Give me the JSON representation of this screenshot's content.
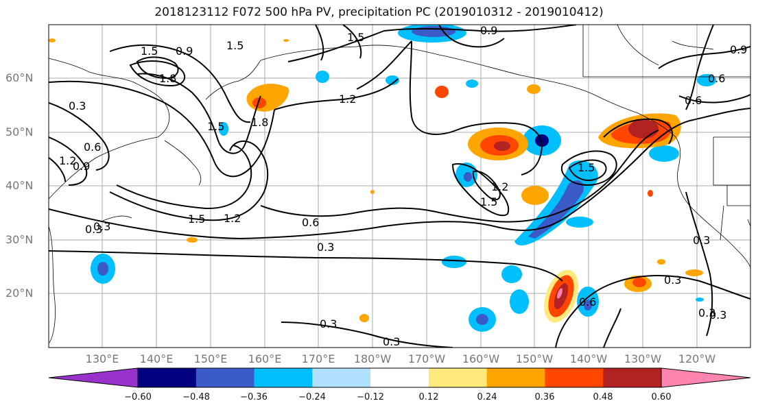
{
  "title": "2018123112 F072 500 hPa PV, precipitation PC (2019010312 - 2019010412)",
  "lat_labels": [
    "60°N",
    "50°N",
    "40°N",
    "30°N",
    "20°N"
  ],
  "lon_labels": [
    "130°E",
    "140°E",
    "150°E",
    "160°E",
    "170°E",
    "180°W",
    "170°W",
    "160°W",
    "150°W",
    "140°W",
    "130°W",
    "120°W"
  ],
  "contour_labels": [
    "1.5",
    "0.9",
    "1.5",
    "1.5",
    "0.9",
    "0.9",
    "1.8",
    "0.3",
    "0.6",
    "0.9",
    "1.2",
    "1.5",
    "1.8",
    "1.2",
    "0.6",
    "0.3",
    "1.5",
    "1.2",
    "0.6",
    "0.3",
    "0.3",
    "0.3",
    "1.2",
    "1.5",
    "1.5",
    "0.6",
    "0.3",
    "0.6",
    "0.3",
    "0.3",
    "0.3",
    "0.3"
  ],
  "colorbar": {
    "ticks": [
      "−0.60",
      "−0.48",
      "−0.36",
      "−0.24",
      "−0.12",
      "0.12",
      "0.24",
      "0.36",
      "0.48",
      "0.60"
    ],
    "colors": [
      "#9932CC",
      "#000080",
      "#3A5BC7",
      "#00BFFF",
      "#B0E2FF",
      "#FFFFFF",
      "#FFE87C",
      "#FFA500",
      "#FF4500",
      "#B22222",
      "#FF85B0"
    ]
  },
  "colors": {
    "neg_strong": "#3A5BC7",
    "neg_mid": "#00BFFF",
    "neg_weak": "#B0E2FF",
    "pos_weak": "#FFE87C",
    "pos_mid": "#FFA500",
    "pos_strong": "#FF4500",
    "pos_vstrong": "#B22222",
    "pos_extreme": "#FF85B0"
  }
}
